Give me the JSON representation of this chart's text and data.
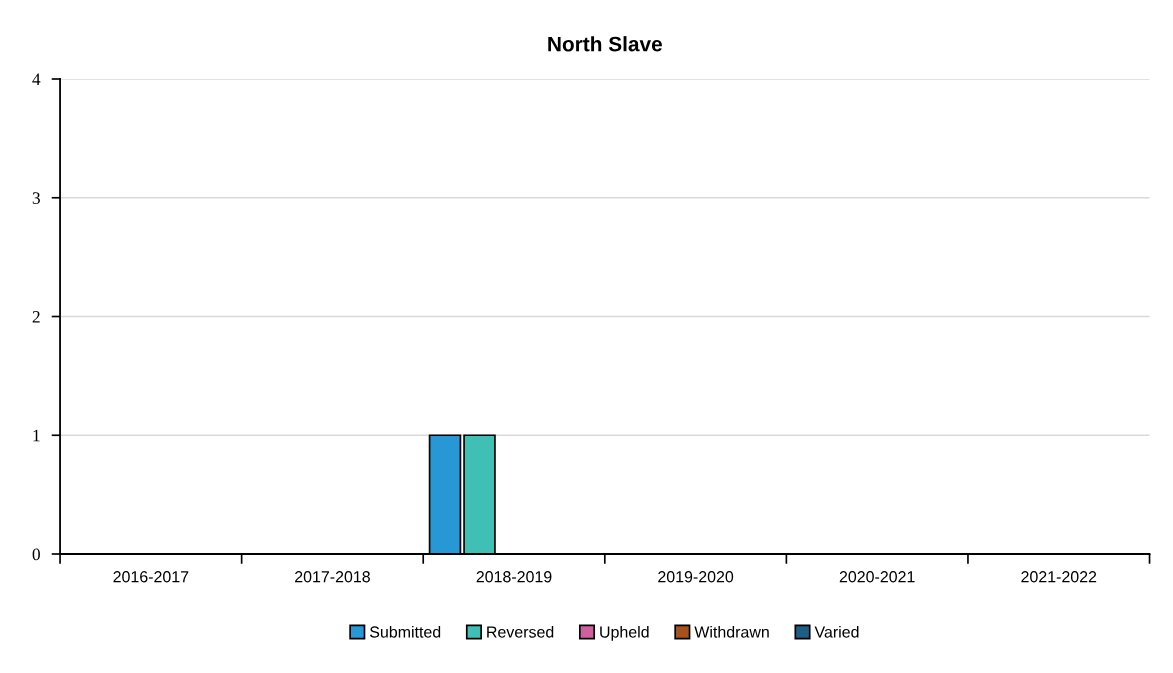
{
  "chart_data": {
    "type": "bar",
    "title": "North Slave",
    "categories": [
      "2016-2017",
      "2017-2018",
      "2018-2019",
      "2019-2020",
      "2020-2021",
      "2021-2022"
    ],
    "series": [
      {
        "name": "Submitted",
        "color": "#2897d5",
        "values": [
          0,
          0,
          1,
          0,
          0,
          0
        ]
      },
      {
        "name": "Reversed",
        "color": "#40c0b4",
        "values": [
          0,
          0,
          1,
          0,
          0,
          0
        ]
      },
      {
        "name": "Upheld",
        "color": "#d05fa0",
        "values": [
          0,
          0,
          0,
          0,
          0,
          0
        ]
      },
      {
        "name": "Withdrawn",
        "color": "#a5521f",
        "values": [
          0,
          0,
          0,
          0,
          0,
          0
        ]
      },
      {
        "name": "Varied",
        "color": "#1e5d86",
        "values": [
          0,
          0,
          0,
          0,
          0,
          0
        ]
      }
    ],
    "ylim": [
      0,
      4
    ],
    "yticks": [
      0,
      1,
      2,
      3,
      4
    ],
    "grid": "y",
    "legend": "bottom"
  }
}
